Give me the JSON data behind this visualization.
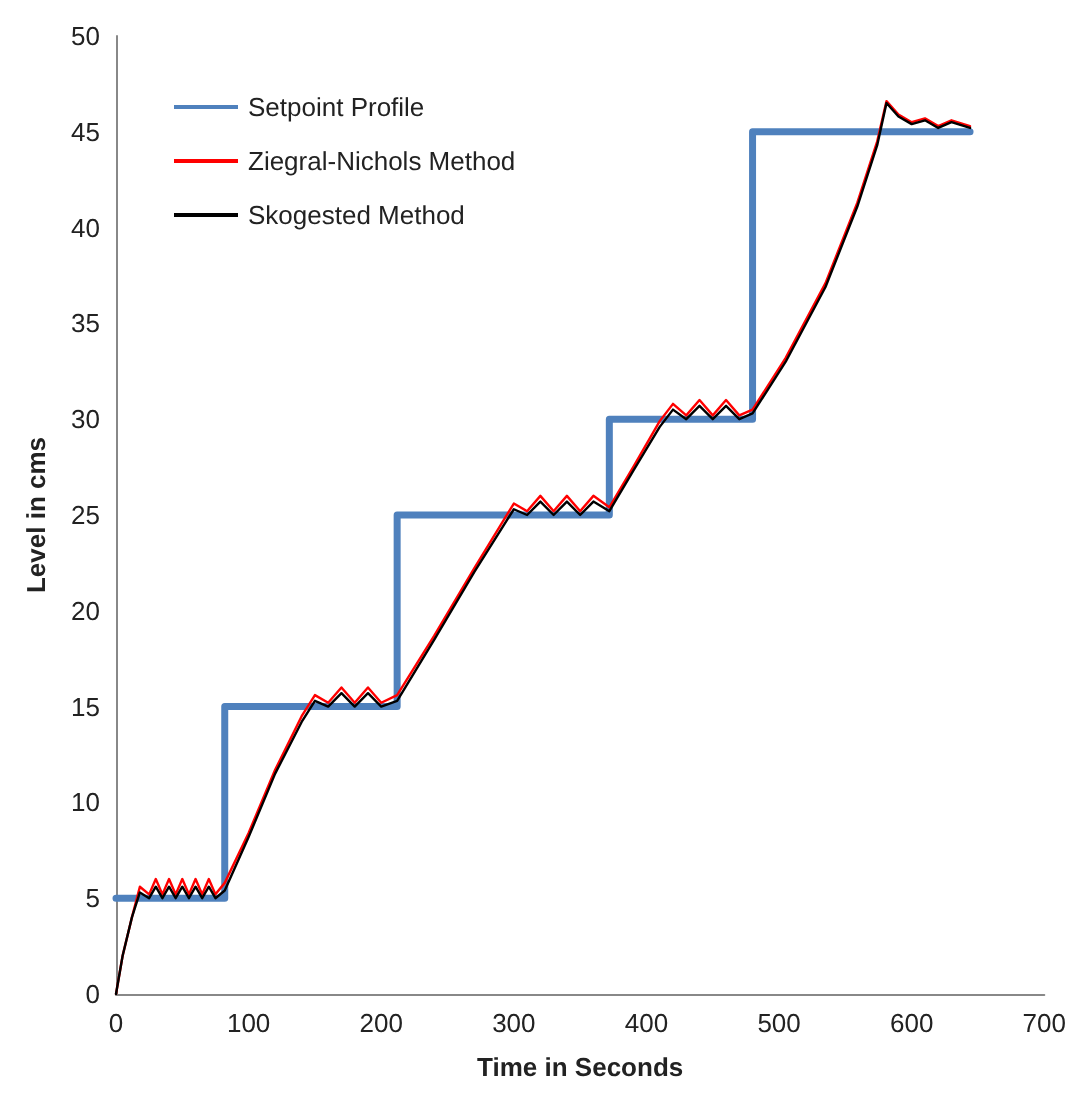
{
  "chart_data": {
    "type": "line",
    "xlabel": "Time in Seconds",
    "ylabel": "Level in cms",
    "xlim": [
      0,
      700
    ],
    "xticks": [
      0,
      100,
      200,
      300,
      400,
      500,
      600,
      700
    ],
    "ylim": [
      0,
      50
    ],
    "yticks": [
      0,
      5,
      10,
      15,
      20,
      25,
      30,
      35,
      40,
      45,
      50
    ],
    "grid": false,
    "legend": "top left",
    "marker": "none",
    "line_style": "solid",
    "series": [
      {
        "name": "Setpoint Profile",
        "color": "#4f81bd",
        "type": "step",
        "x": [
          0,
          82,
          212,
          372,
          480,
          644
        ],
        "values": [
          5,
          15,
          25,
          30,
          45,
          45
        ]
      },
      {
        "name": "Ziegral-Nichols Method",
        "color": "#ff0000",
        "x": [
          0,
          5,
          12,
          18,
          25,
          30,
          35,
          40,
          45,
          50,
          55,
          60,
          65,
          70,
          75,
          82,
          100,
          120,
          140,
          150,
          160,
          170,
          180,
          190,
          200,
          212,
          240,
          270,
          300,
          310,
          320,
          330,
          340,
          350,
          360,
          372,
          390,
          410,
          420,
          430,
          440,
          450,
          460,
          470,
          480,
          505,
          535,
          559,
          574,
          581,
          590,
          600,
          610,
          620,
          630,
          644
        ],
        "values": [
          0,
          2,
          4,
          5.6,
          5.2,
          6,
          5.2,
          6,
          5.2,
          6,
          5.2,
          6,
          5.2,
          6,
          5.2,
          5.8,
          8.4,
          11.7,
          14.5,
          15.6,
          15.2,
          16,
          15.2,
          16,
          15.2,
          15.6,
          18.7,
          22.2,
          25.6,
          25.2,
          26,
          25.2,
          26,
          25.2,
          26,
          25.4,
          27.5,
          29.9,
          30.8,
          30.2,
          31,
          30.2,
          31,
          30.2,
          30.5,
          33.2,
          37.1,
          41.3,
          44.5,
          46.6,
          45.9,
          45.5,
          45.7,
          45.3,
          45.6,
          45.3
        ]
      },
      {
        "name": "Skogested Method",
        "color": "#000000",
        "x": [
          0,
          5,
          12,
          18,
          25,
          30,
          35,
          40,
          45,
          50,
          55,
          60,
          65,
          70,
          75,
          82,
          100,
          120,
          140,
          150,
          160,
          170,
          180,
          190,
          200,
          212,
          240,
          270,
          300,
          310,
          320,
          330,
          340,
          350,
          360,
          372,
          390,
          410,
          420,
          430,
          440,
          450,
          460,
          470,
          480,
          505,
          535,
          559,
          574,
          581,
          590,
          600,
          610,
          620,
          630,
          644
        ],
        "values": [
          0,
          2,
          4,
          5.3,
          5,
          5.6,
          5,
          5.6,
          5,
          5.6,
          5,
          5.6,
          5,
          5.6,
          5,
          5.4,
          8.2,
          11.5,
          14.2,
          15.3,
          15,
          15.7,
          15,
          15.7,
          15,
          15.3,
          18.5,
          22,
          25.3,
          25,
          25.7,
          25,
          25.7,
          25,
          25.7,
          25.2,
          27.3,
          29.6,
          30.5,
          30,
          30.7,
          30,
          30.7,
          30,
          30.3,
          33,
          36.9,
          41.1,
          44.3,
          46.5,
          45.8,
          45.4,
          45.6,
          45.2,
          45.5,
          45.2
        ]
      }
    ]
  }
}
